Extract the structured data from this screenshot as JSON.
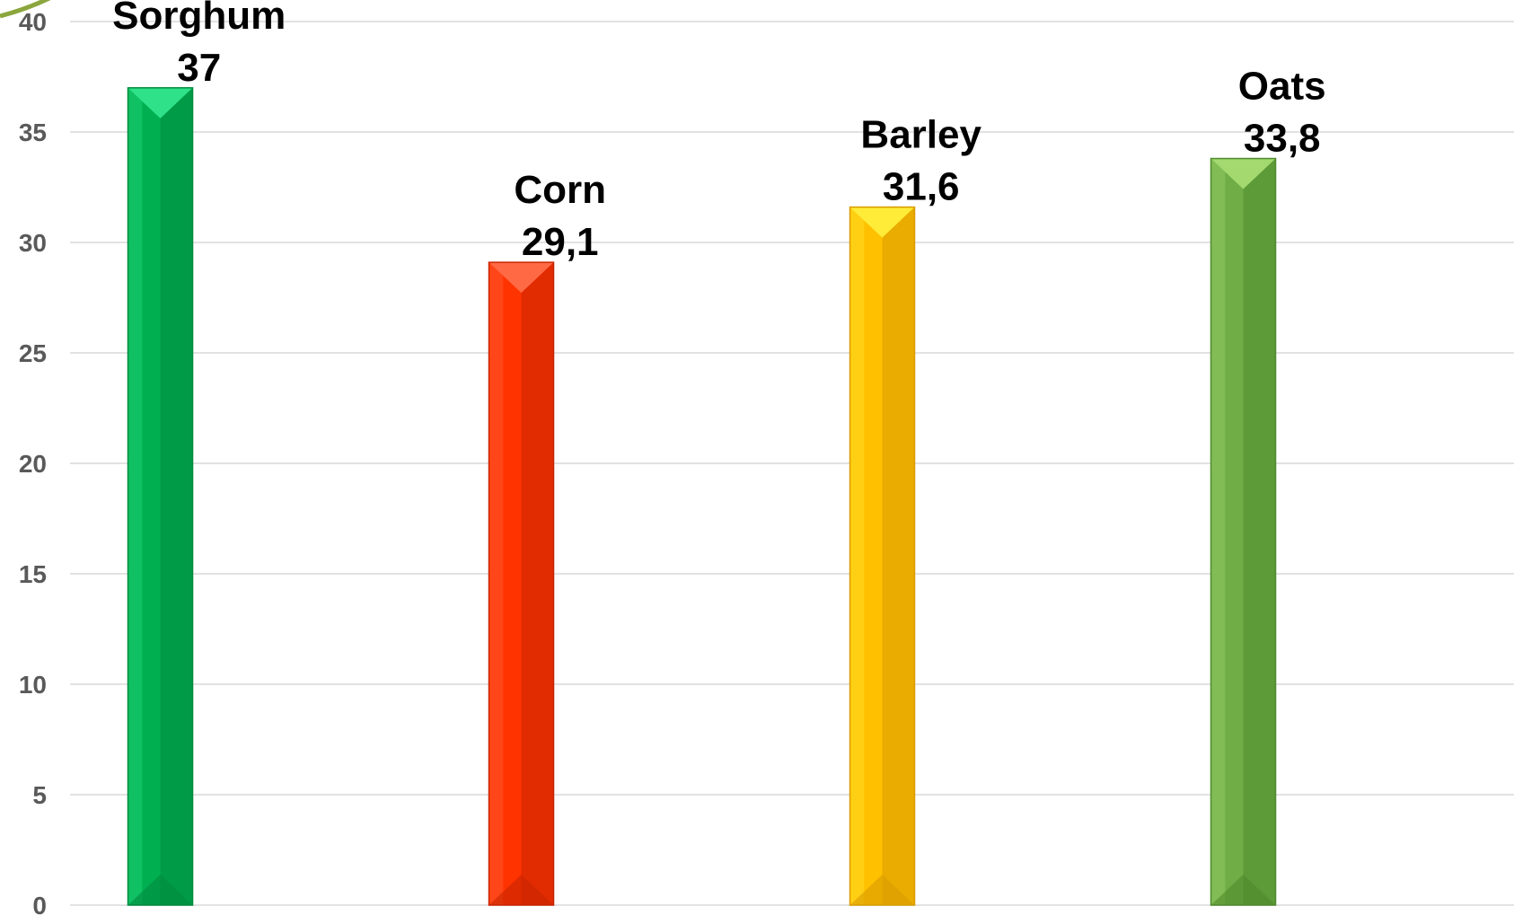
{
  "chart_data": {
    "type": "bar",
    "categories": [
      "Sorghum",
      "Corn",
      "Barley",
      "Oats"
    ],
    "values": [
      37,
      29.1,
      31.6,
      33.8
    ],
    "value_labels": [
      "37",
      "29,1",
      "31,6",
      "33,8"
    ],
    "ylim": [
      0,
      40
    ],
    "yticks": [
      0,
      5,
      10,
      15,
      20,
      25,
      30,
      35,
      40
    ],
    "grid": true,
    "legend": "none",
    "colors": {
      "Sorghum": {
        "base": "#00b050",
        "light": "#2fe28a",
        "dark": "#008a3e"
      },
      "Corn": {
        "base": "#ff3300",
        "light": "#ff6a45",
        "dark": "#c82400"
      },
      "Barley": {
        "base": "#ffc000",
        "light": "#ffec38",
        "dark": "#d99b00"
      },
      "Oats": {
        "base": "#70ad47",
        "light": "#a3d96e",
        "dark": "#4f8a2c"
      }
    }
  }
}
